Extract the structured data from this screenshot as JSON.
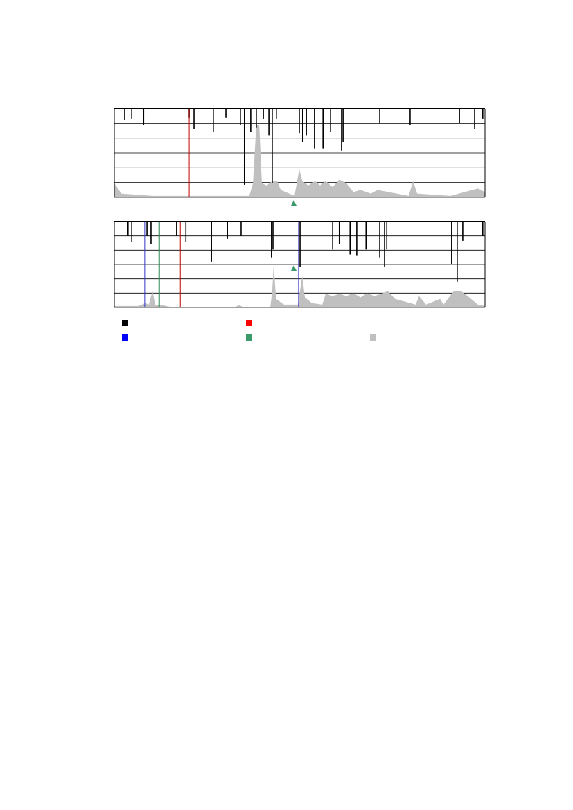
{
  "chart_data": [
    {
      "type": "spike-track",
      "xlim": [
        0,
        100
      ],
      "ylim": [
        0,
        6
      ],
      "yticks": [
        0,
        1,
        2,
        3,
        4,
        5,
        6
      ],
      "grid": true,
      "series": [
        {
          "type": "area",
          "color": "#c0c0c0",
          "x": [
            0,
            1.9,
            10.3,
            36.4,
            37.4,
            38.3,
            39.1,
            39.8,
            41.1,
            42.6,
            43.9,
            44.9,
            48.6,
            49.9,
            50.7,
            52.3,
            54.2,
            55.5,
            57.0,
            58.9,
            60.7,
            62.6,
            64.5,
            66.4,
            69.2,
            71.0,
            79.4,
            80.6,
            81.7,
            90.7,
            98.1,
            100
          ],
          "values": [
            0.95,
            0.25,
            0.1,
            0.1,
            0.95,
            4.9,
            4.9,
            0.95,
            0.8,
            1.1,
            1.1,
            0.5,
            0.1,
            1.9,
            1.1,
            0.8,
            1.1,
            0.8,
            1.1,
            0.7,
            1.2,
            0.95,
            0.35,
            0.5,
            0.25,
            0.5,
            0.1,
            1.1,
            0.25,
            0.1,
            0.6,
            0.35
          ]
        },
        {
          "type": "spike",
          "color": "#000000",
          "x": [
            2.8,
            4.7,
            7.9,
            20.2,
            21.5,
            26.7,
            30.1,
            34.0,
            35.1,
            36.8,
            38.3,
            40.2,
            41.7,
            42.6,
            43.7,
            49.9,
            50.8,
            51.8,
            54.0,
            56.3,
            58.3,
            61.3,
            61.7,
            71.6,
            79.8,
            93.1,
            97.2,
            99.4
          ],
          "values": [
            5.25,
            5.3,
            4.9,
            5.4,
            4.6,
            4.45,
            5.4,
            4.9,
            0.85,
            4.45,
            4.7,
            5.3,
            4.2,
            0.95,
            5.3,
            4.35,
            3.75,
            4.2,
            3.3,
            3.3,
            4.45,
            3.15,
            3.75,
            5.0,
            4.9,
            5.0,
            4.6,
            5.3
          ]
        },
        {
          "type": "vline",
          "color": "#c00000",
          "x": [
            20.2
          ]
        }
      ]
    },
    {
      "type": "spike-track",
      "xlim": [
        0,
        100
      ],
      "ylim": [
        0,
        6
      ],
      "yticks": [
        0,
        1,
        2,
        3,
        4,
        5,
        6
      ],
      "grid": true,
      "series": [
        {
          "type": "area",
          "color": "#c0c0c0",
          "x": [
            0,
            6.5,
            8.4,
            9.3,
            10.3,
            11.0,
            13.1,
            15.0,
            32.7,
            33.6,
            34.6,
            42.1,
            42.6,
            43.0,
            43.6,
            45.8,
            49.5,
            50.7,
            51.4,
            53.3,
            56.1,
            57.0,
            58.9,
            60.7,
            62.6,
            64.5,
            66.4,
            68.2,
            70.1,
            72.0,
            73.8,
            75.7,
            81.3,
            82.2,
            84.1,
            87.9,
            88.8,
            91.6,
            93.5,
            95.3,
            98.1,
            100
          ],
          "values": [
            0.1,
            0.1,
            0.3,
            0.2,
            1.15,
            0.2,
            0.15,
            0.05,
            0.05,
            0.15,
            0.05,
            0.05,
            1.15,
            3.05,
            0.6,
            0.2,
            0.2,
            2.2,
            0.7,
            0.3,
            0.2,
            0.95,
            0.8,
            0.95,
            0.8,
            1.0,
            0.7,
            1.0,
            0.8,
            0.95,
            1.15,
            0.6,
            0.2,
            0.8,
            0.2,
            0.6,
            0.2,
            1.15,
            1.15,
            0.8,
            0.2,
            0.1
          ]
        },
        {
          "type": "spike",
          "color": "#000000",
          "x": [
            3.7,
            4.7,
            8.8,
            9.9,
            12.1,
            16.8,
            19.3,
            26.2,
            30.5,
            34.2,
            42.4,
            42.8,
            50.1,
            58.9,
            60.7,
            63.6,
            65.4,
            67.9,
            71.6,
            72.9,
            73.5,
            91.0,
            92.5,
            94.0,
            99.4
          ],
          "values": [
            5.0,
            4.55,
            5.0,
            4.45,
            4.8,
            5.0,
            4.55,
            3.2,
            4.8,
            5.0,
            3.5,
            4.05,
            2.85,
            4.05,
            4.45,
            3.7,
            3.6,
            4.05,
            3.5,
            2.85,
            4.05,
            3.0,
            1.8,
            4.65,
            5.0
          ]
        },
        {
          "type": "vline",
          "color": "#3333cc",
          "x": [
            8.2,
            49.7
          ]
        },
        {
          "type": "vline",
          "color": "#2e8b57",
          "x": [
            12.1
          ]
        },
        {
          "type": "vline",
          "color": "#c00000",
          "x": [
            17.8
          ]
        }
      ]
    }
  ],
  "legend_colors": [
    "#000000",
    "#ff0000",
    "#0000ff",
    "#3a9a6a",
    "#c0c0c0"
  ]
}
